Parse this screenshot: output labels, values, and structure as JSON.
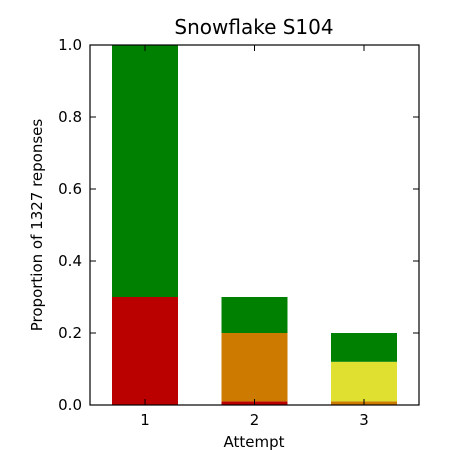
{
  "chart_data": {
    "type": "bar",
    "stacked": true,
    "title": "Snowflake S104",
    "xlabel": "Attempt",
    "ylabel": "Proportion of 1327 reponses",
    "categories": [
      "1",
      "2",
      "3"
    ],
    "ylim": [
      0,
      1.0
    ],
    "yticks": [
      "0.0",
      "0.2",
      "0.4",
      "0.6",
      "0.8",
      "1.0"
    ],
    "grid": false,
    "series": [
      {
        "color": "#bb0000",
        "values": [
          0.3,
          0.01,
          0.0
        ]
      },
      {
        "color": "#cc7a00",
        "values": [
          0.0,
          0.19,
          0.01
        ]
      },
      {
        "color": "#e0e030",
        "values": [
          0.0,
          0.0,
          0.11
        ]
      },
      {
        "color": "#008000",
        "values": [
          0.7,
          0.1,
          0.08
        ]
      }
    ]
  }
}
